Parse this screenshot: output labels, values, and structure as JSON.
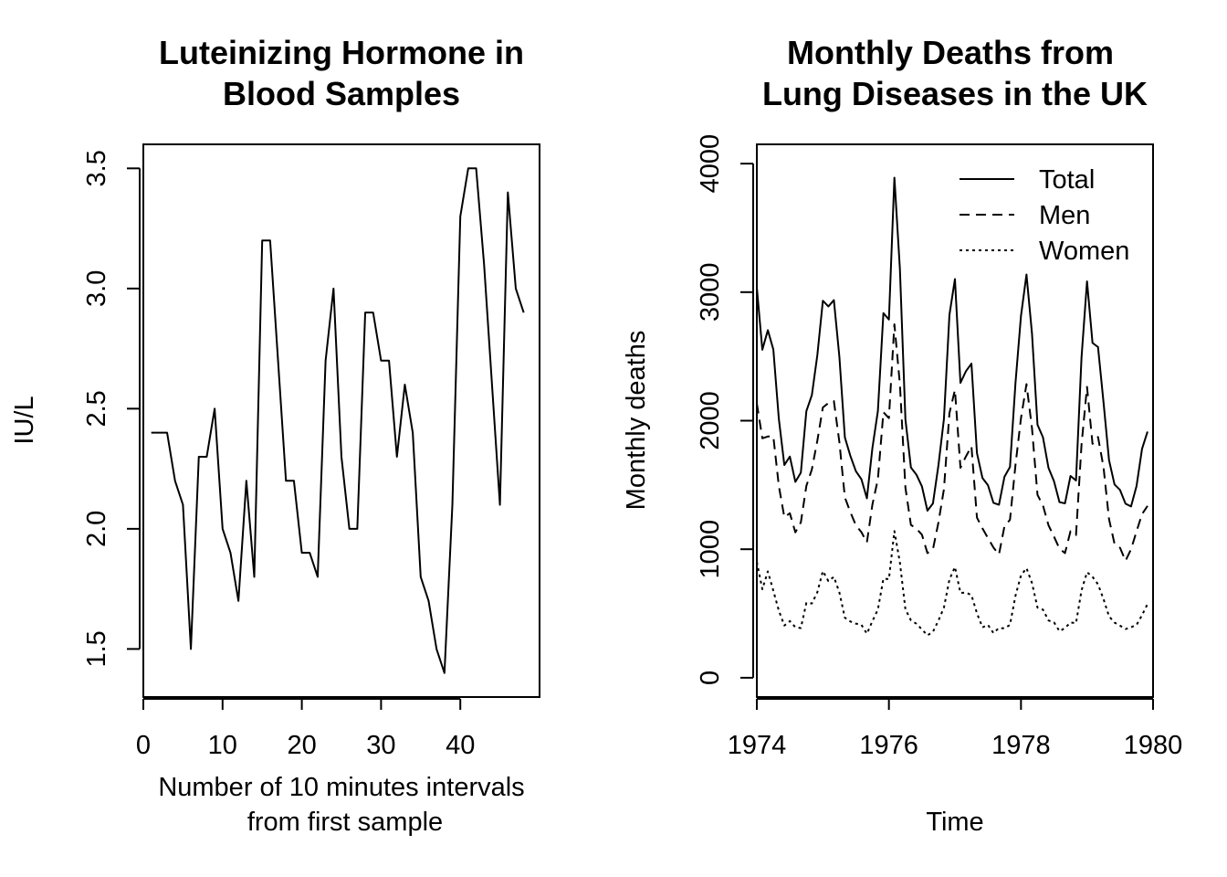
{
  "chart_data": [
    {
      "type": "line",
      "title": [
        "Luteinizing Hormone in",
        "Blood Samples"
      ],
      "xlabel": [
        "Number of 10 minutes intervals",
        "from first sample"
      ],
      "ylabel": "IU/L",
      "xlim": [
        0,
        50
      ],
      "ylim": [
        1.3,
        3.6
      ],
      "xticks": [
        0,
        10,
        20,
        30,
        40
      ],
      "xtick_labels": [
        "0",
        "10",
        "20",
        "30",
        "40"
      ],
      "yticks": [
        1.5,
        2.0,
        2.5,
        3.0,
        3.5
      ],
      "ytick_labels": [
        "1.5",
        "2.0",
        "2.5",
        "3.0",
        "3.5"
      ],
      "grid": false,
      "x": [
        1,
        2,
        3,
        4,
        5,
        6,
        7,
        8,
        9,
        10,
        11,
        12,
        13,
        14,
        15,
        16,
        17,
        18,
        19,
        20,
        21,
        22,
        23,
        24,
        25,
        26,
        27,
        28,
        29,
        30,
        31,
        32,
        33,
        34,
        35,
        36,
        37,
        38,
        39,
        40,
        41,
        42,
        43,
        44,
        45,
        46,
        47,
        48
      ],
      "series": [
        {
          "values": [
            2.4,
            2.4,
            2.4,
            2.2,
            2.1,
            1.5,
            2.3,
            2.3,
            2.5,
            2.0,
            1.9,
            1.7,
            2.2,
            1.8,
            3.2,
            3.2,
            2.7,
            2.2,
            2.2,
            1.9,
            1.9,
            1.8,
            2.7,
            3.0,
            2.3,
            2.0,
            2.0,
            2.9,
            2.9,
            2.7,
            2.7,
            2.3,
            2.6,
            2.4,
            1.8,
            1.7,
            1.5,
            1.4,
            2.1,
            3.3,
            3.5,
            3.5,
            3.1,
            2.6,
            2.1,
            3.4,
            3.0,
            2.9
          ],
          "style": "solid"
        }
      ]
    },
    {
      "type": "line",
      "title": [
        "Monthly Deaths from",
        "Lung Diseases in the UK"
      ],
      "xlabel": "Time",
      "ylabel": "Monthly deaths",
      "x_start": 1974,
      "x_frequency": "monthly",
      "xlim": [
        1974,
        1980
      ],
      "ylim": [
        -150,
        4150
      ],
      "xticks": [
        1974,
        1976,
        1978,
        1980
      ],
      "xtick_labels": [
        "1974",
        "1976",
        "1978",
        "1980"
      ],
      "yticks": [
        0,
        1000,
        2000,
        3000,
        4000
      ],
      "ytick_labels": [
        "0",
        "1000",
        "2000",
        "3000",
        "4000"
      ],
      "grid": false,
      "legend_position": "top-right",
      "series": [
        {
          "name": "Total",
          "style": "solid",
          "values": [
            3035,
            2552,
            2704,
            2554,
            2014,
            1655,
            1721,
            1524,
            1596,
            2074,
            2199,
            2512,
            2933,
            2889,
            2938,
            2497,
            1870,
            1726,
            1607,
            1545,
            1396,
            1787,
            2076,
            2837,
            2787,
            3891,
            3179,
            2011,
            1636,
            1580,
            1489,
            1300,
            1356,
            1653,
            2013,
            2823,
            3102,
            2294,
            2385,
            2444,
            1748,
            1554,
            1498,
            1361,
            1346,
            1564,
            1640,
            2293,
            2815,
            3137,
            2679,
            1969,
            1870,
            1633,
            1529,
            1366,
            1357,
            1570,
            1535,
            2491,
            3084,
            2605,
            2573,
            2143,
            1693,
            1504,
            1461,
            1354,
            1333,
            1492,
            1781,
            1915
          ]
        },
        {
          "name": "Men",
          "style": "dashed",
          "values": [
            2134,
            1863,
            1877,
            1877,
            1492,
            1249,
            1280,
            1131,
            1209,
            1492,
            1621,
            1846,
            2103,
            2137,
            2153,
            1833,
            1403,
            1288,
            1186,
            1133,
            1053,
            1347,
            1545,
            2066,
            2020,
            2750,
            2283,
            1479,
            1189,
            1160,
            1113,
            970,
            999,
            1208,
            1467,
            2059,
            2240,
            1634,
            1722,
            1801,
            1246,
            1162,
            1087,
            1013,
            959,
            1179,
            1229,
            1655,
            2019,
            2284,
            1942,
            1423,
            1340,
            1187,
            1098,
            1004,
            970,
            1140,
            1110,
            1812,
            2263,
            1820,
            1873,
            1638,
            1234,
            1042,
            1011,
            910,
            1000,
            1139,
            1273,
            1337
          ]
        },
        {
          "name": "Women",
          "style": "dotted",
          "values": [
            901,
            689,
            827,
            677,
            522,
            406,
            441,
            393,
            387,
            582,
            578,
            666,
            830,
            752,
            785,
            664,
            467,
            438,
            421,
            412,
            343,
            440,
            531,
            771,
            767,
            1141,
            896,
            532,
            447,
            420,
            376,
            330,
            357,
            445,
            546,
            764,
            862,
            660,
            663,
            643,
            502,
            392,
            411,
            348,
            387,
            385,
            411,
            638,
            796,
            853,
            737,
            546,
            530,
            446,
            431,
            362,
            387,
            430,
            425,
            679,
            821,
            785,
            727,
            612,
            478,
            429,
            405,
            379,
            393,
            411,
            487,
            574
          ]
        }
      ]
    }
  ]
}
